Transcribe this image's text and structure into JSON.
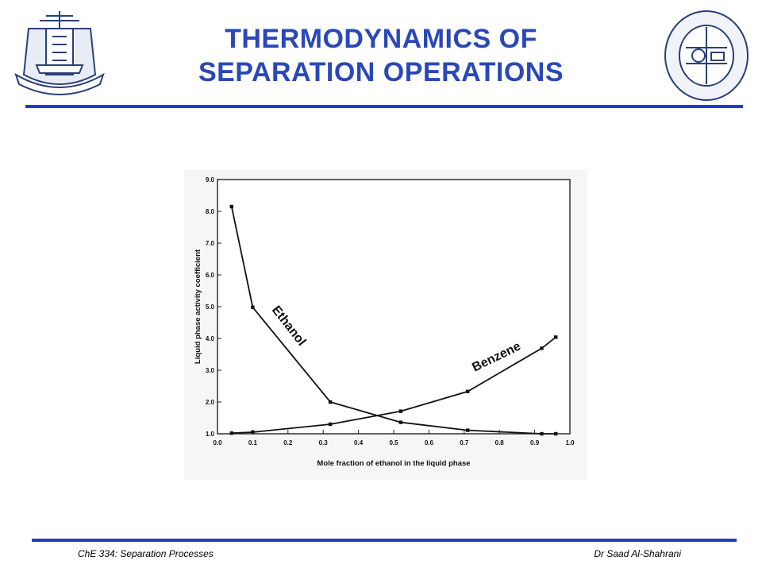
{
  "slide": {
    "title_line1": "THERMODYNAMICS OF",
    "title_line2": "SEPARATION OPERATIONS",
    "footer_left": "ChE 334: Separation Processes",
    "footer_right": "Dr Saad Al-Shahrani",
    "accent_color": "#1f3cc8",
    "logo_left_icon": "university-emblem-icon",
    "logo_right_icon": "department-seal-icon"
  },
  "chart_data": {
    "type": "line",
    "xlabel": "Mole fraction of ethanol in the liquid phase",
    "ylabel": "Liquid phase activity coefficient",
    "xlim": [
      0.0,
      1.0
    ],
    "ylim": [
      1.0,
      9.0
    ],
    "x_ticks": [
      "0.0",
      "0.1",
      "0.2",
      "0.3",
      "0.4",
      "0.5",
      "0.6",
      "0.7",
      "0.8",
      "0.9",
      "1.0"
    ],
    "y_ticks": [
      "1.0",
      "2.0",
      "3.0",
      "4.0",
      "5.0",
      "6.0",
      "7.0",
      "8.0",
      "9.0"
    ],
    "grid": false,
    "series": [
      {
        "name": "Ethanol",
        "x": [
          0.04,
          0.1,
          0.32,
          0.52,
          0.71,
          0.92,
          0.96
        ],
        "y": [
          8.15,
          4.98,
          2.0,
          1.36,
          1.11,
          1.0,
          1.0
        ]
      },
      {
        "name": "Benzene",
        "x": [
          0.04,
          0.1,
          0.32,
          0.52,
          0.71,
          0.92,
          0.96
        ],
        "y": [
          1.02,
          1.05,
          1.3,
          1.71,
          2.33,
          3.69,
          4.04
        ]
      }
    ]
  }
}
